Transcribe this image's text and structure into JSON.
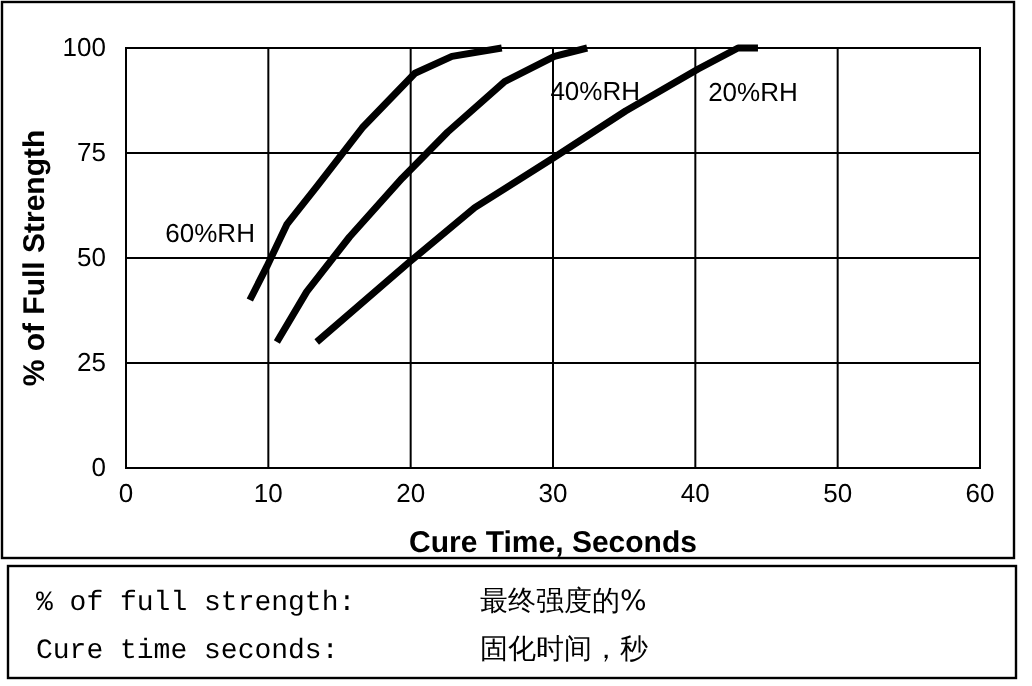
{
  "chart_data": {
    "type": "line",
    "xlabel": "Cure Time, Seconds",
    "ylabel": "% of Full Strength",
    "xlim": [
      0,
      60
    ],
    "xticks": [
      0,
      10,
      20,
      30,
      40,
      50,
      60
    ],
    "ylim": [
      0,
      100
    ],
    "yticks": [
      0,
      25,
      50,
      75,
      100
    ],
    "grid": true,
    "line_style": "solid",
    "marker": "none",
    "series": [
      {
        "name": "60%RH",
        "color": "#000000",
        "x": [
          8.7,
          9.9,
          11.3,
          13.4,
          16.6,
          20.3,
          22.9,
          26.4
        ],
        "values": [
          40,
          48,
          58,
          67,
          81,
          94,
          98,
          100
        ]
      },
      {
        "name": "40%RH",
        "color": "#000000",
        "x": [
          10.6,
          12.7,
          15.7,
          19.4,
          22.6,
          26.6,
          30.1,
          32.4
        ],
        "values": [
          30,
          42,
          55,
          69,
          80,
          92,
          98,
          100
        ]
      },
      {
        "name": "20%RH",
        "color": "#000000",
        "x": [
          13.4,
          19.9,
          24.5,
          30.1,
          35.1,
          40.2,
          43,
          44.4
        ],
        "values": [
          30,
          49,
          62,
          74,
          85,
          95,
          100,
          100
        ]
      }
    ],
    "annotations": [
      "% of full strength:",
      "最终强度的%",
      "Cure time seconds:",
      "固化时间，秒"
    ]
  }
}
